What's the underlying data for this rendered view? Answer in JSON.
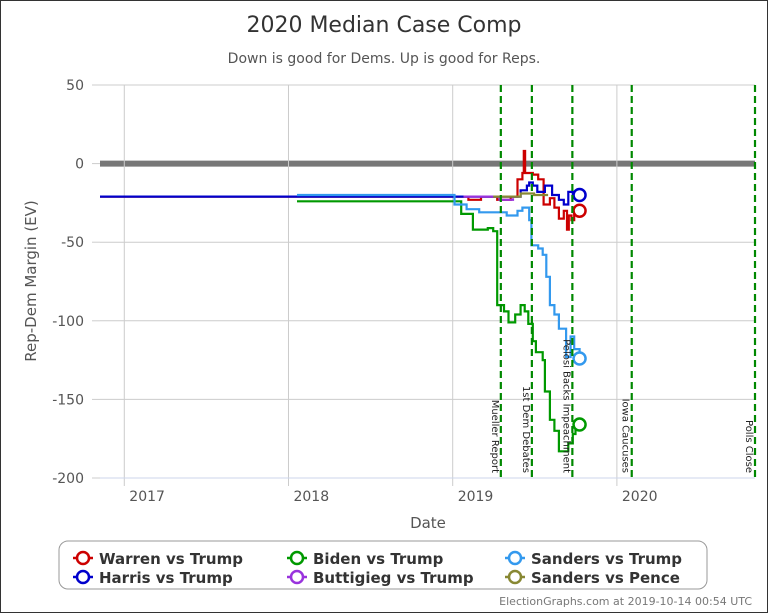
{
  "chart_data": {
    "type": "line",
    "title": "2020 Median Case Comp",
    "subtitle": "Down is good for Dems. Up is good for Reps.",
    "xlabel": "Date",
    "ylabel": "Rep-Dem Margin (EV)",
    "xlim": [
      "2016-11-08",
      "2020-11-03"
    ],
    "ylim": [
      -200,
      50
    ],
    "x_ticks": [
      "2017",
      "2018",
      "2019",
      "2020"
    ],
    "x_tick_dates": [
      "2017-01-01",
      "2018-01-01",
      "2019-01-01",
      "2020-01-01"
    ],
    "y_ticks": [
      50,
      0,
      -50,
      -100,
      -150,
      -200
    ],
    "grid": true,
    "zero_line": true,
    "legend_position": "bottom",
    "events": [
      {
        "date": "2019-04-18",
        "label": "Mueller Report"
      },
      {
        "date": "2019-06-26",
        "label": "1st Dem Debates"
      },
      {
        "date": "2019-09-24",
        "label": "Pelosi Backs Impeachment"
      },
      {
        "date": "2020-02-03",
        "label": "Iowa Caucuses"
      },
      {
        "date": "2020-11-03",
        "label": "Polls Close"
      }
    ],
    "series": [
      {
        "name": "Warren vs Trump",
        "color": "#cc0000",
        "points": [
          [
            "2016-11-08",
            -21
          ],
          [
            "2019-01-25",
            -21
          ],
          [
            "2019-02-05",
            -23
          ],
          [
            "2019-03-05",
            -21
          ],
          [
            "2019-04-10",
            -23
          ],
          [
            "2019-05-10",
            -21
          ],
          [
            "2019-05-25",
            -10
          ],
          [
            "2019-06-05",
            -6
          ],
          [
            "2019-06-08",
            8
          ],
          [
            "2019-06-11",
            -6
          ],
          [
            "2019-06-28",
            -7
          ],
          [
            "2019-07-10",
            -10
          ],
          [
            "2019-07-22",
            -26
          ],
          [
            "2019-08-05",
            -22
          ],
          [
            "2019-08-15",
            -28
          ],
          [
            "2019-08-25",
            -35
          ],
          [
            "2019-09-05",
            -30
          ],
          [
            "2019-09-12",
            -42
          ],
          [
            "2019-09-16",
            -33
          ],
          [
            "2019-09-22",
            -36
          ],
          [
            "2019-09-28",
            -32
          ],
          [
            "2019-10-10",
            -30
          ]
        ],
        "end_value": -30
      },
      {
        "name": "Harris vs Trump",
        "color": "#0000cc",
        "points": [
          [
            "2016-11-08",
            -21
          ],
          [
            "2019-05-25",
            -21
          ],
          [
            "2019-06-01",
            -17
          ],
          [
            "2019-06-15",
            -14
          ],
          [
            "2019-06-20",
            -12
          ],
          [
            "2019-06-28",
            -14
          ],
          [
            "2019-07-08",
            -18
          ],
          [
            "2019-07-25",
            -14
          ],
          [
            "2019-08-10",
            -20
          ],
          [
            "2019-08-25",
            -23
          ],
          [
            "2019-09-05",
            -26
          ],
          [
            "2019-09-15",
            -18
          ],
          [
            "2019-09-25",
            -22
          ],
          [
            "2019-10-01",
            -20
          ],
          [
            "2019-10-10",
            -20
          ]
        ],
        "end_value": -20
      },
      {
        "name": "Biden vs Trump",
        "color": "#009900",
        "points": [
          [
            "2018-01-20",
            -24
          ],
          [
            "2018-12-20",
            -24
          ],
          [
            "2019-01-20",
            -32
          ],
          [
            "2019-02-15",
            -42
          ],
          [
            "2019-03-20",
            -41
          ],
          [
            "2019-04-01",
            -43
          ],
          [
            "2019-04-10",
            -90
          ],
          [
            "2019-04-25",
            -94
          ],
          [
            "2019-05-05",
            -101
          ],
          [
            "2019-05-20",
            -96
          ],
          [
            "2019-06-01",
            -90
          ],
          [
            "2019-06-10",
            -94
          ],
          [
            "2019-06-18",
            -102
          ],
          [
            "2019-06-28",
            -113
          ],
          [
            "2019-07-05",
            -120
          ],
          [
            "2019-07-20",
            -125
          ],
          [
            "2019-07-25",
            -145
          ],
          [
            "2019-08-05",
            -163
          ],
          [
            "2019-08-15",
            -170
          ],
          [
            "2019-08-25",
            -183
          ],
          [
            "2019-09-15",
            -178
          ],
          [
            "2019-09-25",
            -172
          ],
          [
            "2019-10-01",
            -166
          ],
          [
            "2019-10-10",
            -166
          ]
        ],
        "end_value": -166
      },
      {
        "name": "Sanders vs Trump",
        "color": "#3399ee",
        "points": [
          [
            "2018-01-20",
            -20
          ],
          [
            "2018-12-25",
            -20
          ],
          [
            "2019-01-05",
            -26
          ],
          [
            "2019-02-01",
            -29
          ],
          [
            "2019-03-01",
            -31
          ],
          [
            "2019-04-01",
            -31
          ],
          [
            "2019-05-01",
            -33
          ],
          [
            "2019-05-25",
            -30
          ],
          [
            "2019-06-05",
            -28
          ],
          [
            "2019-06-20",
            -36
          ],
          [
            "2019-06-25",
            -52
          ],
          [
            "2019-07-10",
            -54
          ],
          [
            "2019-07-20",
            -58
          ],
          [
            "2019-07-28",
            -72
          ],
          [
            "2019-08-05",
            -90
          ],
          [
            "2019-08-15",
            -96
          ],
          [
            "2019-08-25",
            -105
          ],
          [
            "2019-09-10",
            -123
          ],
          [
            "2019-09-20",
            -110
          ],
          [
            "2019-09-28",
            -118
          ],
          [
            "2019-10-10",
            -124
          ]
        ],
        "end_value": -124
      },
      {
        "name": "Buttigieg vs Trump",
        "color": "#9933dd",
        "points": [
          [
            "2019-01-25",
            -21
          ],
          [
            "2019-03-01",
            -21
          ],
          [
            "2019-04-15",
            -23
          ],
          [
            "2019-05-15",
            -22
          ]
        ]
      },
      {
        "name": "Sanders vs Pence",
        "color": "#888833",
        "points": [
          [
            "2019-04-01",
            -21
          ],
          [
            "2019-05-15",
            -21
          ],
          [
            "2019-06-01",
            -19
          ],
          [
            "2019-07-01",
            -20
          ],
          [
            "2019-08-01",
            -20
          ]
        ]
      }
    ]
  },
  "legend": [
    {
      "label": "Warren vs Trump",
      "color": "#cc0000"
    },
    {
      "label": "Biden vs Trump",
      "color": "#009900"
    },
    {
      "label": "Sanders vs Trump",
      "color": "#3399ee"
    },
    {
      "label": "Harris vs Trump",
      "color": "#0000cc"
    },
    {
      "label": "Buttigieg vs Trump",
      "color": "#9933dd"
    },
    {
      "label": "Sanders vs Pence",
      "color": "#888833"
    }
  ],
  "credit": "ElectionGraphs.com at 2019-10-14 00:54 UTC"
}
